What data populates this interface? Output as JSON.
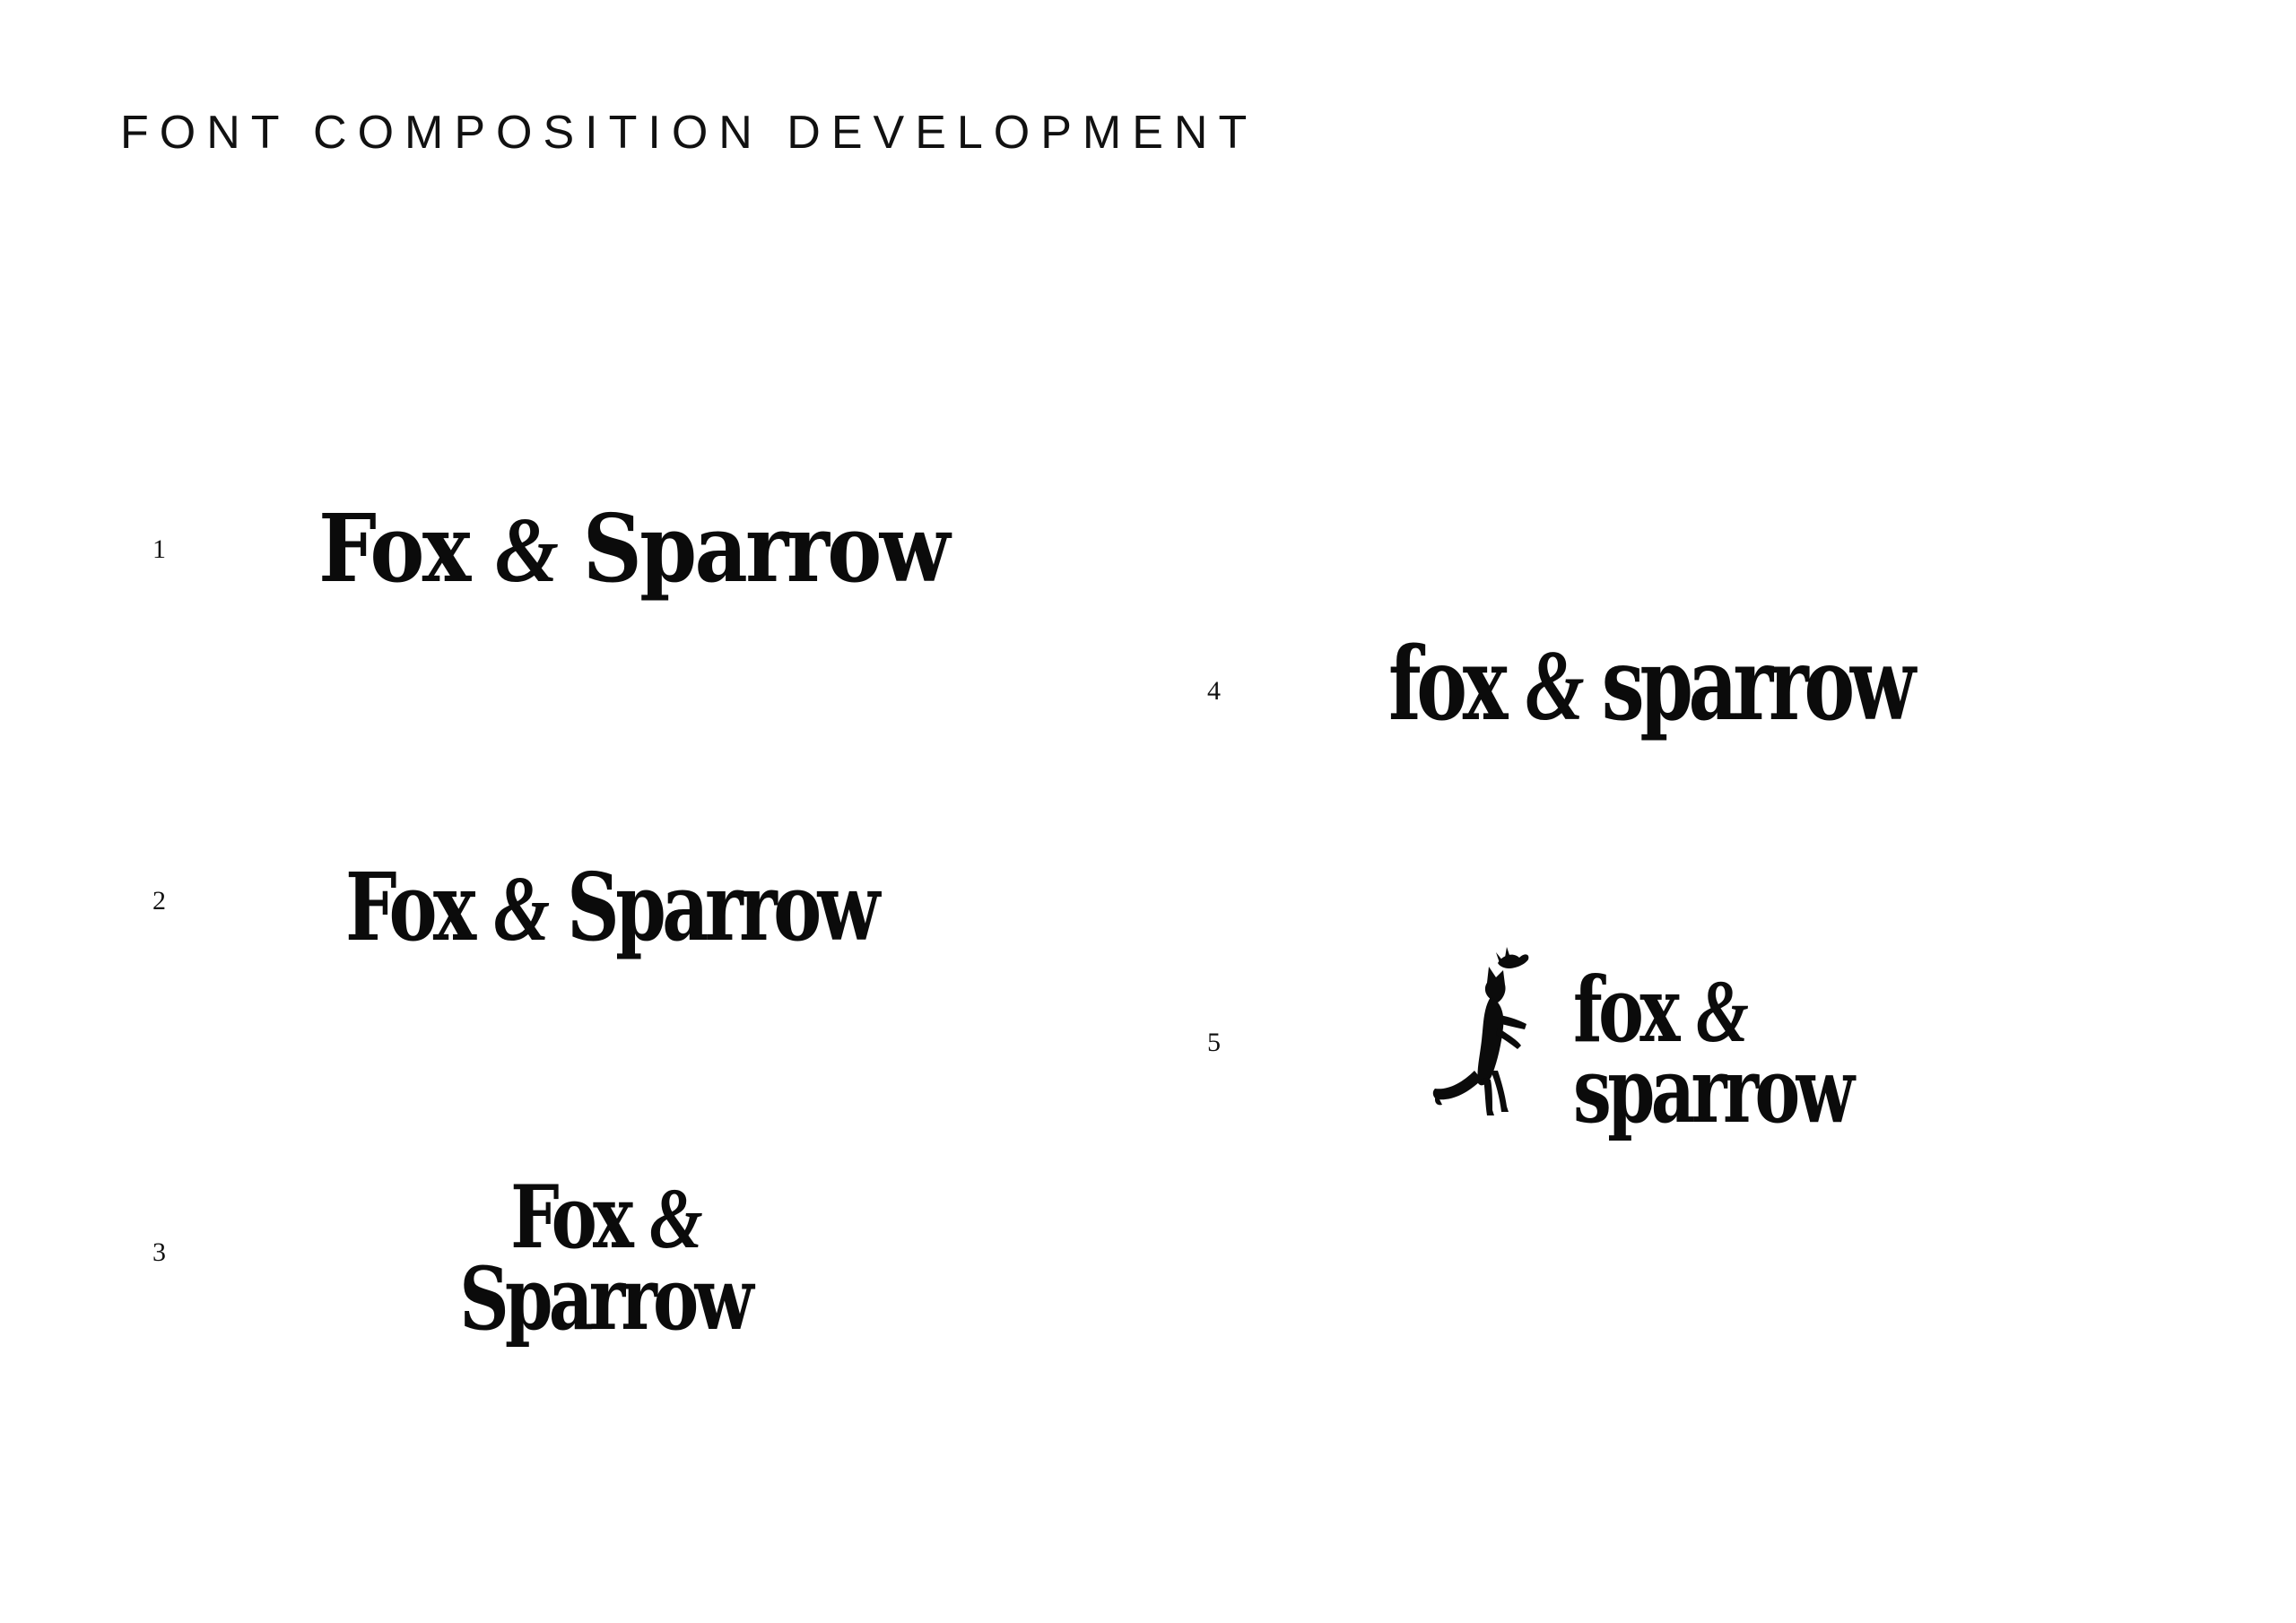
{
  "page": {
    "title": "FONT COMPOSITION DEVELOPMENT"
  },
  "options": [
    {
      "number": "1",
      "word1": "Fox",
      "amp": "&",
      "word2": "Sparrow"
    },
    {
      "number": "2",
      "word1": "Fox",
      "amp": "&",
      "word2": "Sparrow"
    },
    {
      "number": "3",
      "word1": "Fox",
      "amp": "&",
      "word2": "Sparrow"
    },
    {
      "number": "4",
      "word1": "fox",
      "amp": "&",
      "word2": "sparrow"
    },
    {
      "number": "5",
      "word1": "fox",
      "amp": "&",
      "word2": "sparrow",
      "icon": "leaping-fox-with-sparrow-icon"
    }
  ],
  "colors": {
    "ink": "#0b0b0b",
    "background": "#ffffff"
  }
}
